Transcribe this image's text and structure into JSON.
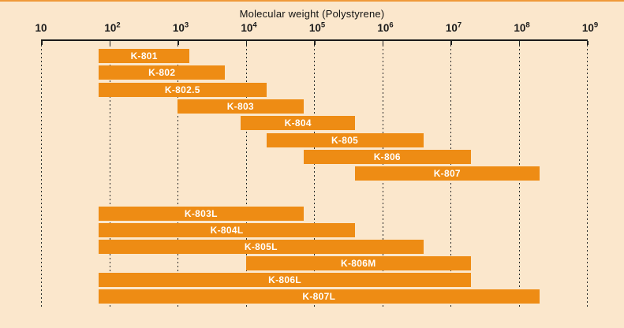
{
  "chart_data": {
    "type": "bar",
    "subtype": "horizontal-range-bars-log-scale",
    "title": "Molecular weight (Polystyrene)",
    "x_axis": {
      "scale": "log10",
      "min": 10,
      "max": 1000000000,
      "tick_exponents": [
        1,
        2,
        3,
        4,
        5,
        6,
        7,
        8,
        9
      ],
      "ticks": [
        {
          "base": "10",
          "sup": ""
        },
        {
          "base": "10",
          "sup": "2"
        },
        {
          "base": "10",
          "sup": "3"
        },
        {
          "base": "10",
          "sup": "4"
        },
        {
          "base": "10",
          "sup": "5"
        },
        {
          "base": "10",
          "sup": "6"
        },
        {
          "base": "10",
          "sup": "7"
        },
        {
          "base": "10",
          "sup": "8"
        },
        {
          "base": "10",
          "sup": "9"
        }
      ],
      "grid": "dashed-vertical"
    },
    "legend": "none",
    "bars": [
      {
        "label": "K-801",
        "group": "A",
        "min": 70,
        "max": 1500
      },
      {
        "label": "K-802",
        "group": "A",
        "min": 70,
        "max": 5000
      },
      {
        "label": "K-802.5",
        "group": "A",
        "min": 70,
        "max": 20000
      },
      {
        "label": "K-803",
        "group": "A",
        "min": 1000,
        "max": 70000
      },
      {
        "label": "K-804",
        "group": "A",
        "min": 8500,
        "max": 400000
      },
      {
        "label": "K-805",
        "group": "A",
        "min": 20000,
        "max": 4000000
      },
      {
        "label": "K-806",
        "group": "A",
        "min": 70000,
        "max": 20000000
      },
      {
        "label": "K-807",
        "group": "A",
        "min": 400000,
        "max": 200000000
      },
      {
        "label": "K-803L",
        "group": "B",
        "min": 70,
        "max": 70000
      },
      {
        "label": "K-804L",
        "group": "B",
        "min": 70,
        "max": 400000
      },
      {
        "label": "K-805L",
        "group": "B",
        "min": 70,
        "max": 4000000
      },
      {
        "label": "K-806M",
        "group": "B",
        "min": 10000,
        "max": 20000000
      },
      {
        "label": "K-806L",
        "group": "B",
        "min": 70,
        "max": 20000000
      },
      {
        "label": "K-807L",
        "group": "B",
        "min": 70,
        "max": 200000000
      }
    ],
    "colors": {
      "background": "#fbe7cc",
      "bar": "#ee8c14",
      "bar_label": "#ffffff",
      "axis": "#1a1a1a",
      "grid": "#2b2b2b",
      "title_text": "#111111",
      "top_accent": "#ef9a3a"
    }
  }
}
